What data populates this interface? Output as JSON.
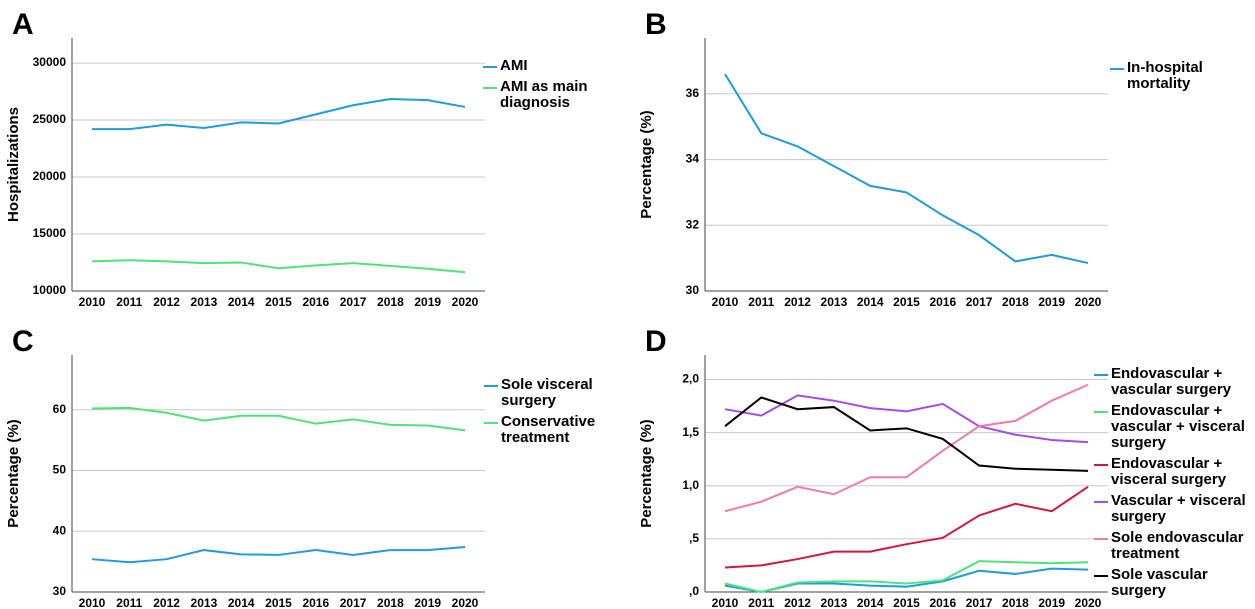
{
  "chart_data": [
    {
      "type": "line",
      "label": "A",
      "ylabel": "Hospitalizations",
      "categories": [
        "2010",
        "2011",
        "2012",
        "2013",
        "2014",
        "2015",
        "2016",
        "2017",
        "2018",
        "2019",
        "2020"
      ],
      "ylim": [
        10000,
        32200
      ],
      "yticks": [
        10000,
        15000,
        20000,
        25000,
        30000
      ],
      "grid": true,
      "series": [
        {
          "name": "AMI",
          "color": "#1f9bde",
          "values": [
            24200,
            24200,
            24600,
            24300,
            24800,
            24700,
            25500,
            26300,
            26850,
            26750,
            26150
          ]
        },
        {
          "name": "AMI as main diagnosis",
          "color": "#4ee37a",
          "values": [
            12600,
            12700,
            12600,
            12450,
            12500,
            12000,
            12250,
            12450,
            12200,
            11950,
            11650
          ]
        }
      ]
    },
    {
      "type": "line",
      "label": "B",
      "ylabel": "Percentage (%)",
      "categories": [
        "2010",
        "2011",
        "2012",
        "2013",
        "2014",
        "2015",
        "2016",
        "2017",
        "2018",
        "2019",
        "2020"
      ],
      "ylim": [
        30,
        37.7
      ],
      "yticks": [
        30,
        32,
        34,
        36
      ],
      "grid": true,
      "series": [
        {
          "name": "In-hospital mortality",
          "color": "#1f9bde",
          "values": [
            36.6,
            34.8,
            34.4,
            33.8,
            33.2,
            33.0,
            32.3,
            31.7,
            30.9,
            31.1,
            30.85
          ]
        }
      ]
    },
    {
      "type": "line",
      "label": "C",
      "ylabel": "Percentage (%)",
      "categories": [
        "2010",
        "2011",
        "2012",
        "2013",
        "2014",
        "2015",
        "2016",
        "2017",
        "2018",
        "2019",
        "2020"
      ],
      "ylim": [
        30,
        69
      ],
      "yticks": [
        30,
        40,
        50,
        60
      ],
      "grid": true,
      "series": [
        {
          "name": "Sole visceral surgery",
          "color": "#1f9bde",
          "values": [
            35.4,
            34.9,
            35.4,
            36.9,
            36.2,
            36.1,
            36.9,
            36.1,
            36.9,
            36.9,
            37.4
          ]
        },
        {
          "name": "Conservative treatment",
          "color": "#4ee37a",
          "values": [
            60.2,
            60.3,
            59.5,
            58.2,
            59.0,
            59.0,
            57.7,
            58.4,
            57.5,
            57.4,
            56.6
          ]
        }
      ]
    },
    {
      "type": "line",
      "label": "D",
      "ylabel": "Percentage (%)",
      "categories": [
        "2010",
        "2011",
        "2012",
        "2013",
        "2014",
        "2015",
        "2016",
        "2017",
        "2018",
        "2019",
        "2020"
      ],
      "ylim": [
        0,
        2.23
      ],
      "yticks": [
        {
          "value": 0,
          "label": ",0"
        },
        {
          "value": 0.5,
          "label": ",5"
        },
        {
          "value": 1,
          "label": "1,0"
        },
        {
          "value": 1.5,
          "label": "1,5"
        },
        {
          "value": 2,
          "label": "2,0"
        }
      ],
      "grid": true,
      "series": [
        {
          "name": "Endovascular + vascular surgery",
          "color": "#1f9bde",
          "values": [
            0.06,
            0.0,
            0.08,
            0.08,
            0.06,
            0.05,
            0.1,
            0.2,
            0.17,
            0.22,
            0.21
          ]
        },
        {
          "name": "Endovascular + vascular + visceral surgery",
          "color": "#4ee37a",
          "values": [
            0.08,
            0.0,
            0.09,
            0.1,
            0.1,
            0.08,
            0.11,
            0.29,
            0.28,
            0.27,
            0.28
          ]
        },
        {
          "name": "Endovascular + visceral surgery",
          "color": "#d4163c",
          "values": [
            0.23,
            0.25,
            0.31,
            0.38,
            0.38,
            0.45,
            0.51,
            0.72,
            0.83,
            0.76,
            0.99
          ]
        },
        {
          "name": "Vascular + visceral surgery",
          "color": "#a64af0",
          "values": [
            1.72,
            1.66,
            1.85,
            1.8,
            1.73,
            1.7,
            1.77,
            1.56,
            1.48,
            1.43,
            1.41
          ]
        },
        {
          "name": "Sole endovascular treatment",
          "color": "#f07aaa",
          "values": [
            0.76,
            0.85,
            0.99,
            0.92,
            1.08,
            1.08,
            1.33,
            1.56,
            1.61,
            1.8,
            1.95
          ]
        },
        {
          "name": "Sole vascular surgery",
          "color": "#000000",
          "values": [
            1.56,
            1.83,
            1.72,
            1.74,
            1.52,
            1.54,
            1.44,
            1.19,
            1.16,
            1.15,
            1.14
          ]
        }
      ]
    }
  ]
}
